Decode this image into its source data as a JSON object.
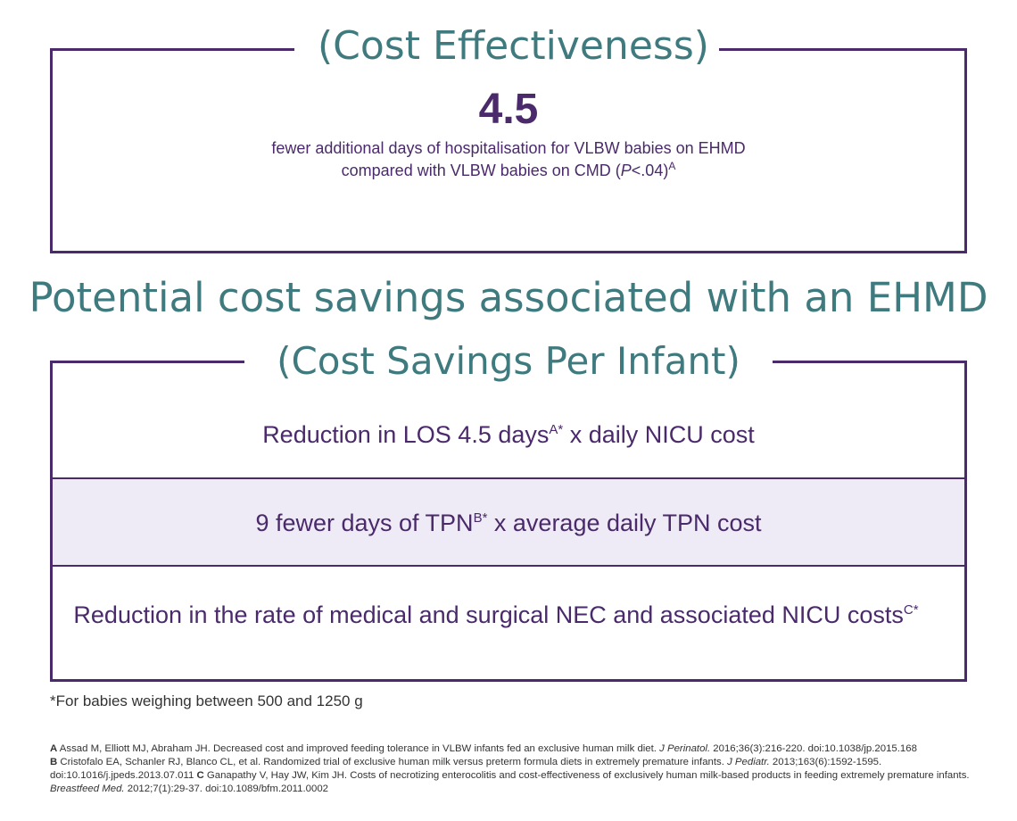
{
  "effectiveness": {
    "title": "(Cost Effectiveness)",
    "number": "4.5",
    "line1": "fewer additional days of hospitalisation for VLBW babies on EHMD",
    "line2_before": "compared with VLBW babies on CMD (",
    "line2_italic": "P",
    "line2_after": "<.04)",
    "line2_sup": "A"
  },
  "heading": "Potential cost savings associated with an EHMD",
  "savings": {
    "title": "(Cost Savings Per Infant)",
    "rows": [
      {
        "before": "Reduction in LOS 4.5 days",
        "sup": "A*",
        "after": " x daily NICU cost"
      },
      {
        "before": "9 fewer days of TPN",
        "sup": "B*",
        "after": " x average daily TPN cost"
      },
      {
        "before": "Reduction in the rate of medical and surgical NEC and associated NICU costs",
        "sup": "C*",
        "after": ""
      }
    ]
  },
  "footnote": "*For babies weighing between 500 and 1250 g",
  "references": {
    "a_tag": "A",
    "a_text": " Assad M, Elliott MJ, Abraham JH. Decreased cost and improved feeding tolerance in VLBW infants fed an exclusive human milk diet. ",
    "a_journal": "J Perinatol.",
    "a_tail": " 2016;36(3):216-220. doi:10.1038/jp.2015.168",
    "b_tag": "B",
    "b_text": " Cristofalo EA, Schanler RJ, Blanco CL, et al. Randomized trial of exclusive human milk versus preterm formula diets in extremely premature infants. ",
    "b_journal": "J Pediatr.",
    "b_tail": " 2013;163(6):1592-1595. doi:10.1016/j.jpeds.2013.07.011 ",
    "c_tag": "C",
    "c_text": " Ganapathy V, Hay JW, Kim JH. Costs of necrotizing enterocolitis and cost-effectiveness of exclusively human milk-based products in feeding extremely premature infants. ",
    "c_journal": "Breastfeed Med.",
    "c_tail": " 2012;7(1):29-37. doi:10.1089/bfm.2011.0002"
  }
}
